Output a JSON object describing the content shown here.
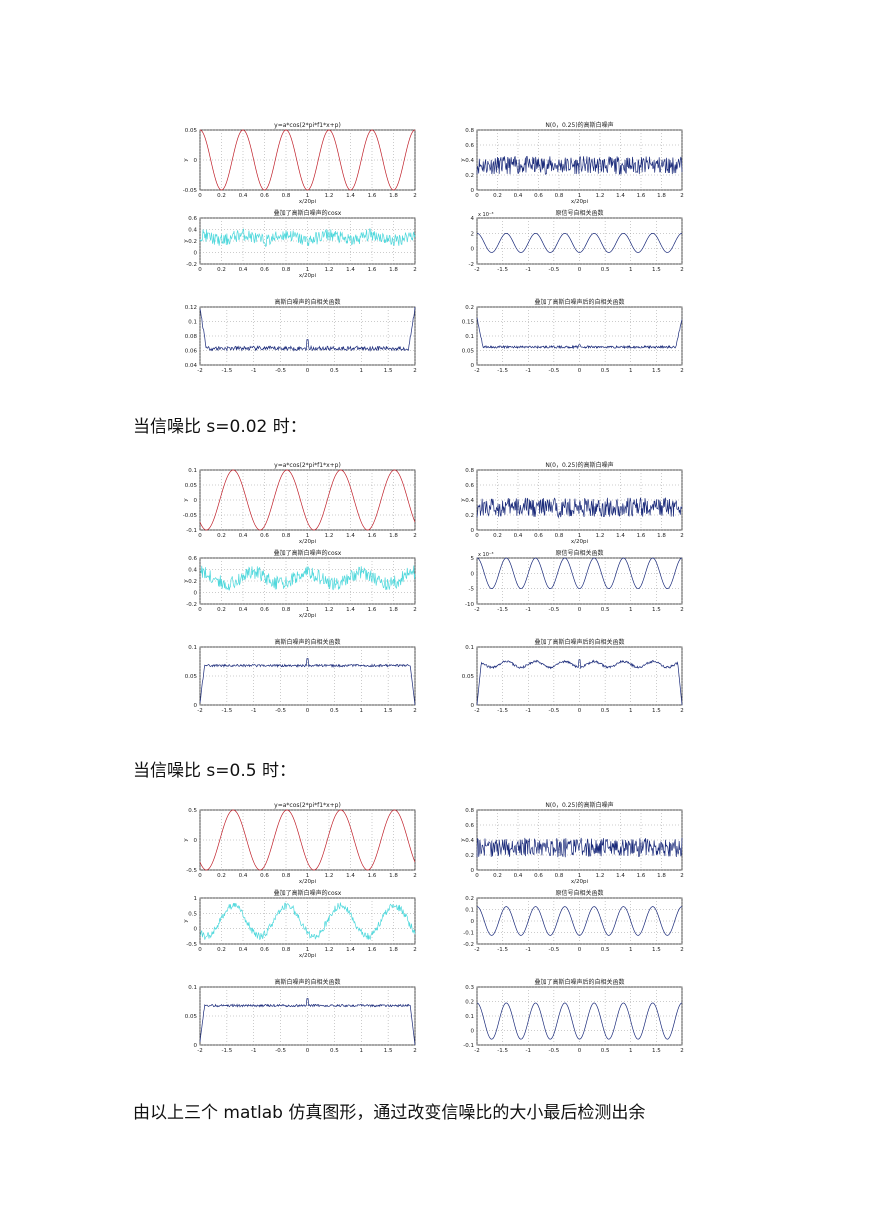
{
  "captions": [
    "当信噪比 s=0.02 时：",
    "当信噪比 s=0.5 时：",
    "由以上三个 matlab 仿真图形，通过改变信噪比的大小最后检测出余"
  ],
  "colors": {
    "signal": "#c0202a",
    "noisy": "#4fd8dc",
    "noise": "#1a2a7a",
    "grid": "#999999"
  },
  "chart_data": [
    {
      "group": 1,
      "panels": [
        {
          "type": "line",
          "title": "y=a*cos(2*pi*f1*x+p)",
          "xlabel": "x/20pi",
          "ylabel": "y",
          "xlim": [
            0,
            2
          ],
          "ylim": [
            -0.05,
            0.05
          ],
          "xticks": [
            "0",
            "0.2",
            "0.4",
            "0.6",
            "0.8",
            "1",
            "1.2",
            "1.4",
            "1.6",
            "1.8",
            "2"
          ],
          "yticks": [
            "0.05",
            "0",
            "-0.05"
          ],
          "color": "signal",
          "kind": "cos",
          "amp": 0.05,
          "cycles": 5,
          "phase": 0
        },
        {
          "type": "line",
          "title": "N(0，0.25)的高斯白噪声",
          "xlabel": "x/20pi",
          "ylabel": "y",
          "xlim": [
            0,
            2
          ],
          "ylim": [
            0,
            0.8
          ],
          "xticks": [
            "0",
            "0.2",
            "0.4",
            "0.6",
            "0.8",
            "1",
            "1.2",
            "1.4",
            "1.6",
            "1.8",
            "2"
          ],
          "yticks": [
            "0.8",
            "0.6",
            "0.4",
            "0.2",
            "0"
          ],
          "color": "noise",
          "kind": "noise",
          "mean": 0.33,
          "spread": 0.12
        },
        {
          "type": "line",
          "title": "叠加了高斯白噪声的cosx",
          "xlabel": "x/20pi",
          "ylabel": "y",
          "xlim": [
            0,
            2
          ],
          "ylim": [
            -0.2,
            0.6
          ],
          "xticks": [
            "0",
            "0.2",
            "0.4",
            "0.6",
            "0.8",
            "1",
            "1.2",
            "1.4",
            "1.6",
            "1.8",
            "2"
          ],
          "yticks": [
            "0.6",
            "0.4",
            "0.2",
            "0",
            "-0.2"
          ],
          "color": "noisy",
          "kind": "noisycos",
          "amp": 0.05,
          "cycles": 5,
          "mean": 0.26,
          "spread": 0.11
        },
        {
          "type": "line",
          "title": "原信号自相关函数",
          "xlabel": "",
          "ylabel": "",
          "exp": "x 10⁻³",
          "xlim": [
            -2,
            2
          ],
          "ylim": [
            -2,
            4
          ],
          "xticks": [
            "-2",
            "-1.5",
            "-1",
            "-0.5",
            "0",
            "0.5",
            "1",
            "1.5",
            "2"
          ],
          "yticks": [
            "4",
            "2",
            "0",
            "-2"
          ],
          "color": "noise",
          "kind": "cos",
          "amp": 1.25,
          "offset": 0.75,
          "cycles": 7,
          "phase": 0
        },
        {
          "type": "line",
          "title": "高斯白噪声的自相关函数",
          "xlabel": "",
          "ylabel": "",
          "xlim": [
            -2,
            2
          ],
          "ylim": [
            0.04,
            0.12
          ],
          "xticks": [
            "-2",
            "-1.5",
            "-1",
            "-0.5",
            "0",
            "0.5",
            "1",
            "1.5",
            "2"
          ],
          "yticks": [
            "0.12",
            "0.1",
            "0.08",
            "0.06",
            "0.04"
          ],
          "color": "noise",
          "kind": "acorr",
          "level": 0.063,
          "spike": 0.075,
          "edge": 0.118,
          "jit": 0.003
        },
        {
          "type": "line",
          "title": "叠加了高斯白噪声后的自相关函数",
          "xlabel": "",
          "ylabel": "",
          "xlim": [
            -2,
            2
          ],
          "ylim": [
            0,
            0.2
          ],
          "xticks": [
            "-2",
            "-1.5",
            "-1",
            "-0.5",
            "0",
            "0.5",
            "1",
            "1.5",
            "2"
          ],
          "yticks": [
            "0.2",
            "0.15",
            "0.1",
            "0.05",
            "0"
          ],
          "color": "noise",
          "kind": "acorr",
          "level": 0.062,
          "spike": 0.07,
          "edge": 0.16,
          "jit": 0.004
        }
      ]
    },
    {
      "group": 2,
      "panels": [
        {
          "type": "line",
          "title": "y=a*cos(2*pi*f1*x+p)",
          "xlabel": "x/20pi",
          "ylabel": "y",
          "xlim": [
            0,
            2
          ],
          "ylim": [
            -0.1,
            0.1
          ],
          "xticks": [
            "0",
            "0.2",
            "0.4",
            "0.6",
            "0.8",
            "1",
            "1.2",
            "1.4",
            "1.6",
            "1.8",
            "2"
          ],
          "yticks": [
            "0.1",
            "0.05",
            "0",
            "-0.05",
            "-0.1"
          ],
          "color": "signal",
          "kind": "cos",
          "amp": 0.1,
          "cycles": 4,
          "phase": 2.4
        },
        {
          "type": "line",
          "title": "N(0，0.25)的高斯白噪声",
          "xlabel": "x/20pi",
          "ylabel": "y",
          "xlim": [
            0,
            2
          ],
          "ylim": [
            0,
            0.8
          ],
          "xticks": [
            "0",
            "0.2",
            "0.4",
            "0.6",
            "0.8",
            "1",
            "1.2",
            "1.4",
            "1.6",
            "1.8",
            "2"
          ],
          "yticks": [
            "0.8",
            "0.6",
            "0.4",
            "0.2",
            "0"
          ],
          "color": "noise",
          "kind": "noise",
          "mean": 0.3,
          "spread": 0.13
        },
        {
          "type": "line",
          "title": "叠加了高斯白噪声的cosx",
          "xlabel": "x/20pi",
          "ylabel": "y",
          "xlim": [
            0,
            2
          ],
          "ylim": [
            -0.2,
            0.6
          ],
          "xticks": [
            "0",
            "0.2",
            "0.4",
            "0.6",
            "0.8",
            "1",
            "1.2",
            "1.4",
            "1.6",
            "1.8",
            "2"
          ],
          "yticks": [
            "0.6",
            "0.4",
            "0.2",
            "0",
            "-0.2"
          ],
          "color": "noisy",
          "kind": "noisycos",
          "amp": 0.1,
          "cycles": 4,
          "mean": 0.25,
          "spread": 0.12
        },
        {
          "type": "line",
          "title": "原信号自相关函数",
          "xlabel": "",
          "ylabel": "",
          "exp": "x 10⁻³",
          "xlim": [
            -2,
            2
          ],
          "ylim": [
            -10,
            5
          ],
          "xticks": [
            "-2",
            "-1.5",
            "-1",
            "-0.5",
            "0",
            "0.5",
            "1",
            "1.5",
            "2"
          ],
          "yticks": [
            "5",
            "0",
            "-5",
            "-10"
          ],
          "color": "noise",
          "kind": "cos",
          "amp": 5,
          "offset": 0,
          "cycles": 7,
          "phase": 0
        },
        {
          "type": "line",
          "title": "高斯白噪声的自相关函数",
          "xlabel": "",
          "ylabel": "",
          "xlim": [
            -2,
            2
          ],
          "ylim": [
            0,
            0.1
          ],
          "xticks": [
            "-2",
            "-1.5",
            "-1",
            "-0.5",
            "0",
            "0.5",
            "1",
            "1.5",
            "2"
          ],
          "yticks": [
            "0.1",
            "0.05",
            "0"
          ],
          "color": "noise",
          "kind": "acorr",
          "level": 0.068,
          "spike": 0.08,
          "edge": 0.0,
          "jit": 0.002,
          "dropEdge": true
        },
        {
          "type": "line",
          "title": "叠加了高斯白噪声后的自相关函数",
          "xlabel": "",
          "ylabel": "",
          "xlim": [
            -2,
            2
          ],
          "ylim": [
            0,
            0.1
          ],
          "xticks": [
            "-2",
            "-1.5",
            "-1",
            "-0.5",
            "0",
            "0.5",
            "1",
            "1.5",
            "2"
          ],
          "yticks": [
            "0.1",
            "0.05",
            "0"
          ],
          "color": "noise",
          "kind": "acorrwave",
          "level": 0.07,
          "wamp": 0.005,
          "cycles": 7,
          "jit": 0.002,
          "dropEdge": true
        }
      ]
    },
    {
      "group": 3,
      "panels": [
        {
          "type": "line",
          "title": "y=a*cos(2*pi*f1*x+p)",
          "xlabel": "x/20pi",
          "ylabel": "y",
          "xlim": [
            0,
            2
          ],
          "ylim": [
            -0.5,
            0.5
          ],
          "xticks": [
            "0",
            "0.2",
            "0.4",
            "0.6",
            "0.8",
            "1",
            "1.2",
            "1.4",
            "1.6",
            "1.8",
            "2"
          ],
          "yticks": [
            "0.5",
            "0",
            "-0.5"
          ],
          "color": "signal",
          "kind": "cos",
          "amp": 0.5,
          "cycles": 4,
          "phase": 2.4
        },
        {
          "type": "line",
          "title": "N(0，0.25)的高斯白噪声",
          "xlabel": "x/20pi",
          "ylabel": "y",
          "xlim": [
            0,
            2
          ],
          "ylim": [
            0,
            0.8
          ],
          "xticks": [
            "0",
            "0.2",
            "0.4",
            "0.6",
            "0.8",
            "1",
            "1.2",
            "1.4",
            "1.6",
            "1.8",
            "2"
          ],
          "yticks": [
            "0.8",
            "0.6",
            "0.4",
            "0.2",
            "0"
          ],
          "color": "noise",
          "kind": "noise",
          "mean": 0.3,
          "spread": 0.13
        },
        {
          "type": "line",
          "title": "叠加了高斯白噪声的cosx",
          "xlabel": "x/20pi",
          "ylabel": "y",
          "xlim": [
            0,
            2
          ],
          "ylim": [
            -0.5,
            1
          ],
          "xticks": [
            "0",
            "0.2",
            "0.4",
            "0.6",
            "0.8",
            "1",
            "1.2",
            "1.4",
            "1.6",
            "1.8",
            "2"
          ],
          "yticks": [
            "1",
            "0.5",
            "0",
            "-0.5"
          ],
          "color": "noisy",
          "kind": "noisycos",
          "amp": 0.5,
          "cycles": 4,
          "phase": 2.4,
          "mean": 0.25,
          "spread": 0.12
        },
        {
          "type": "line",
          "title": "原信号自相关函数",
          "xlabel": "",
          "ylabel": "",
          "xlim": [
            -2,
            2
          ],
          "ylim": [
            -0.2,
            0.2
          ],
          "xticks": [
            "-2",
            "-1.5",
            "-1",
            "-0.5",
            "0",
            "0.5",
            "1",
            "1.5",
            "2"
          ],
          "yticks": [
            "0.2",
            "0.1",
            "0",
            "-0.1",
            "-0.2"
          ],
          "color": "noise",
          "kind": "cos",
          "amp": 0.125,
          "offset": 0,
          "cycles": 7,
          "phase": 0
        },
        {
          "type": "line",
          "title": "高斯白噪声的自相关函数",
          "xlabel": "",
          "ylabel": "",
          "xlim": [
            -2,
            2
          ],
          "ylim": [
            0,
            0.1
          ],
          "xticks": [
            "-2",
            "-1.5",
            "-1",
            "-0.5",
            "0",
            "0.5",
            "1",
            "1.5",
            "2"
          ],
          "yticks": [
            "0.1",
            "0.05",
            "0"
          ],
          "color": "noise",
          "kind": "acorr",
          "level": 0.068,
          "spike": 0.08,
          "edge": 0.0,
          "jit": 0.002,
          "dropEdge": true
        },
        {
          "type": "line",
          "title": "叠加了高斯白噪声后的自相关函数",
          "xlabel": "",
          "ylabel": "",
          "xlim": [
            -2,
            2
          ],
          "ylim": [
            -0.1,
            0.3
          ],
          "xticks": [
            "-2",
            "-1.5",
            "-1",
            "-0.5",
            "0",
            "0.5",
            "1",
            "1.5",
            "2"
          ],
          "yticks": [
            "0.3",
            "0.2",
            "0.1",
            "0",
            "-0.1"
          ],
          "color": "noise",
          "kind": "cos",
          "amp": 0.125,
          "offset": 0.065,
          "cycles": 7,
          "phase": 0
        }
      ]
    }
  ]
}
